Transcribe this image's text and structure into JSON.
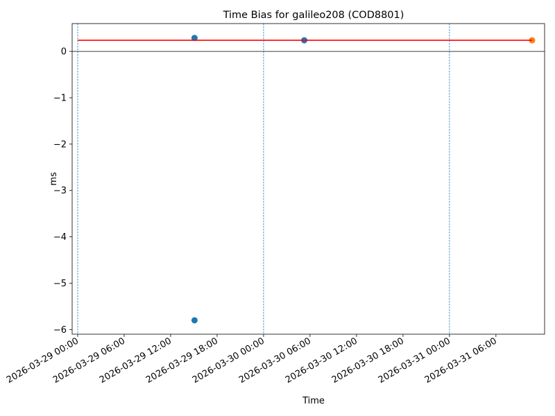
{
  "chart_data": {
    "type": "scatter",
    "title": "Time Bias for galileo208 (COD8801)",
    "xlabel": "Time",
    "ylabel": "ms",
    "x_type": "datetime",
    "xlim": [
      "2026-03-28 23:17",
      "2026-03-31 12:17"
    ],
    "ylim": [
      -6.1,
      0.6
    ],
    "x_ticks": [
      "2026-03-29 00:00",
      "2026-03-29 06:00",
      "2026-03-29 12:00",
      "2026-03-29 18:00",
      "2026-03-30 00:00",
      "2026-03-30 06:00",
      "2026-03-30 12:00",
      "2026-03-30 18:00",
      "2026-03-31 00:00",
      "2026-03-31 06:00"
    ],
    "y_ticks": [
      0,
      -1,
      -2,
      -3,
      -4,
      -5,
      -6
    ],
    "y_tick_labels": [
      "0",
      "−1",
      "−2",
      "−3",
      "−4",
      "−5",
      "−6"
    ],
    "zero_line": 0,
    "day_boundaries": [
      "2026-03-29 00:00",
      "2026-03-30 00:00",
      "2026-03-31 00:00"
    ],
    "series": [
      {
        "type": "scatter",
        "color": "#1f77b4",
        "points": [
          {
            "x": "2026-03-29 15:05",
            "y": 0.29
          },
          {
            "x": "2026-03-29 15:05",
            "y": -5.8
          },
          {
            "x": "2026-03-30 05:15",
            "y": 0.24
          }
        ]
      },
      {
        "type": "scatter",
        "color": "#ff7f0e",
        "points": [
          {
            "x": "2026-03-31 10:40",
            "y": 0.24
          }
        ]
      },
      {
        "type": "line",
        "color": "#ff0000",
        "points": [
          {
            "x": "2026-03-29 00:00",
            "y": 0.24
          },
          {
            "x": "2026-03-31 10:40",
            "y": 0.24
          }
        ]
      }
    ],
    "grid": false
  }
}
